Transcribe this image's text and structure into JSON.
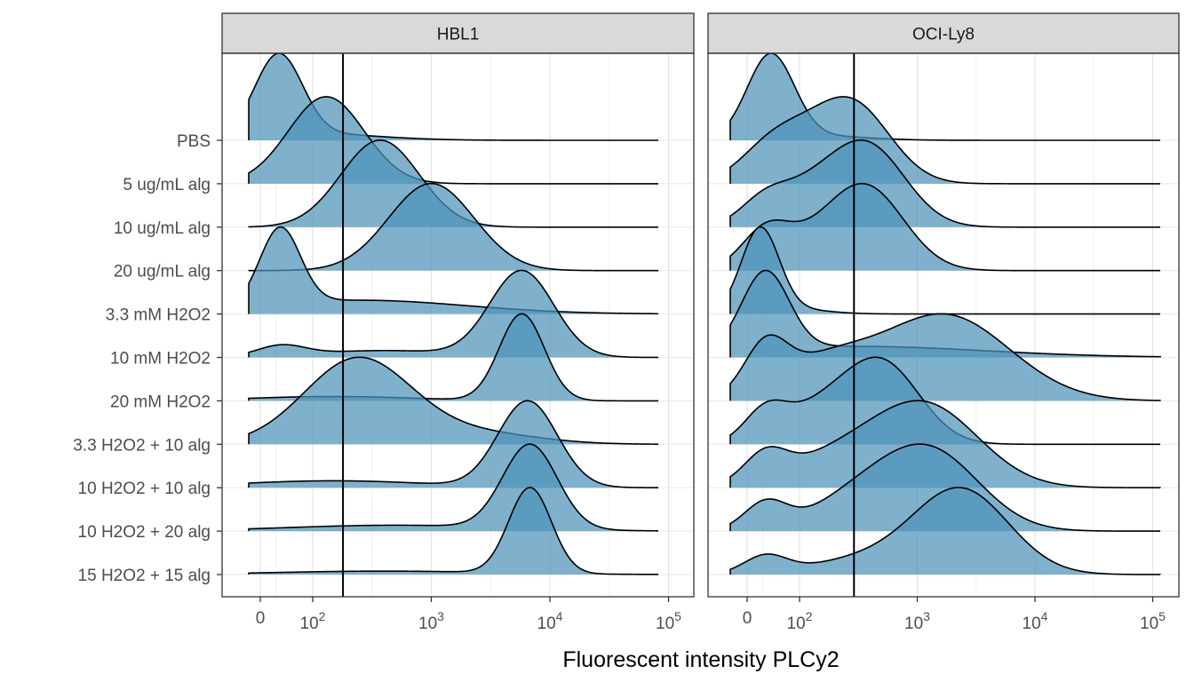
{
  "chart_data": {
    "type": "ridgeline",
    "title": "",
    "xlabel": "Fluorescent intensity PLCy2",
    "ylabel": "",
    "x_scale": "biexponential",
    "x_ticks": [
      {
        "value": 0,
        "base": "0",
        "exp": ""
      },
      {
        "value": 100,
        "base": "10",
        "exp": "2"
      },
      {
        "value": 1000,
        "base": "10",
        "exp": "3"
      },
      {
        "value": 10000,
        "base": "10",
        "exp": "4"
      },
      {
        "value": 100000,
        "base": "10",
        "exp": "5"
      }
    ],
    "x_minor_values": [
      30,
      316,
      3162,
      31623
    ],
    "categories": [
      "PBS",
      "5 ug/mL alg",
      "10 ug/mL alg",
      "20 ug/mL alg",
      "3.3 mM H2O2",
      "10 mM H2O2",
      "20 mM H2O2",
      "3.3 H2O2 + 10 alg",
      "10 H2O2 + 10 alg",
      "10 H2O2 + 20 alg",
      "15 H2O2 + 15 alg"
    ],
    "fill_color": "#4e93ba",
    "fill_opacity": 0.72,
    "panels": [
      {
        "name": "HBL1",
        "threshold": 180,
        "x_range": [
          -40,
          90000
        ],
        "series": [
          {
            "category": "PBS",
            "peaks": [
              [
                35,
                1.0,
                0.2
              ]
            ],
            "tail": [
              [
                100,
                0.08,
                0.55
              ]
            ]
          },
          {
            "category": "5 ug/mL alg",
            "peaks": [
              [
                130,
                1.0,
                0.32
              ]
            ],
            "tail": []
          },
          {
            "category": "10 ug/mL alg",
            "peaks": [
              [
                370,
                1.0,
                0.33
              ]
            ],
            "tail": []
          },
          {
            "category": "20 ug/mL alg",
            "peaks": [
              [
                1000,
                1.0,
                0.36
              ]
            ],
            "tail": []
          },
          {
            "category": "3.3 mM H2O2",
            "peaks": [
              [
                38,
                1.0,
                0.17
              ]
            ],
            "tail": [
              [
                250,
                0.18,
                0.9
              ]
            ]
          },
          {
            "category": "10 mM H2O2",
            "peaks": [
              [
                5800,
                1.0,
                0.27
              ],
              [
                40,
                0.12,
                0.2
              ]
            ],
            "tail": [
              [
                400,
                0.08,
                0.6
              ]
            ]
          },
          {
            "category": "20 mM H2O2",
            "peaks": [
              [
                5800,
                1.0,
                0.19
              ]
            ],
            "tail": [
              [
                150,
                0.05,
                0.7
              ]
            ]
          },
          {
            "category": "3.3 H2O2 + 10 alg",
            "peaks": [
              [
                240,
                0.55,
                0.45
              ]
            ],
            "tail": [
              [
                2500,
                0.07,
                0.5
              ]
            ]
          },
          {
            "category": "10 H2O2 + 10 alg",
            "peaks": [
              [
                6500,
                1.0,
                0.25
              ]
            ],
            "tail": [
              [
                150,
                0.08,
                0.8
              ]
            ]
          },
          {
            "category": "10 H2O2 + 20 alg",
            "peaks": [
              [
                6800,
                1.0,
                0.23
              ]
            ],
            "tail": [
              [
                500,
                0.07,
                0.9
              ]
            ]
          },
          {
            "category": "15 H2O2 + 15 alg",
            "peaks": [
              [
                6800,
                1.0,
                0.18
              ]
            ],
            "tail": [
              [
                400,
                0.04,
                0.9
              ]
            ]
          }
        ]
      },
      {
        "name": "OCI-Ly8",
        "threshold": 290,
        "x_range": [
          -40,
          120000
        ],
        "series": [
          {
            "category": "PBS",
            "peaks": [
              [
                45,
                1.0,
                0.2
              ]
            ],
            "tail": [
              [
                150,
                0.05,
                0.4
              ]
            ]
          },
          {
            "category": "5 ug/mL alg",
            "peaks": [
              [
                280,
                0.72,
                0.32
              ],
              [
                35,
                0.15,
                0.25
              ]
            ],
            "tail": [
              [
                80,
                0.3,
                0.3
              ]
            ]
          },
          {
            "category": "10 ug/mL alg",
            "peaks": [
              [
                380,
                0.72,
                0.32
              ],
              [
                30,
                0.18,
                0.2
              ]
            ],
            "tail": [
              [
                110,
                0.28,
                0.3
              ]
            ]
          },
          {
            "category": "20 ug/mL alg",
            "peaks": [
              [
                380,
                0.72,
                0.32
              ],
              [
                35,
                0.3,
                0.2
              ]
            ],
            "tail": [
              [
                120,
                0.22,
                0.35
              ]
            ]
          },
          {
            "category": "3.3 mM H2O2",
            "peaks": [
              [
                25,
                1.0,
                0.16
              ]
            ],
            "tail": [
              [
                80,
                0.06,
                0.3
              ]
            ]
          },
          {
            "category": "10 mM H2O2",
            "peaks": [
              [
                35,
                0.85,
                0.2
              ]
            ],
            "tail": [
              [
                300,
                0.12,
                1.1
              ]
            ]
          },
          {
            "category": "20 mM H2O2",
            "peaks": [
              [
                1700,
                0.42,
                0.55
              ],
              [
                35,
                0.22,
                0.18
              ]
            ],
            "tail": [
              [
                150,
                0.17,
                0.4
              ]
            ]
          },
          {
            "category": "3.3 H2O2 + 10 alg",
            "peaks": [
              [
                500,
                0.58,
                0.32
              ],
              [
                35,
                0.22,
                0.18
              ]
            ],
            "tail": [
              [
                140,
                0.22,
                0.3
              ]
            ]
          },
          {
            "category": "10 H2O2 + 10 alg",
            "peaks": [
              [
                1200,
                0.5,
                0.45
              ],
              [
                35,
                0.17,
                0.18
              ]
            ],
            "tail": [
              [
                200,
                0.18,
                0.45
              ]
            ]
          },
          {
            "category": "10 H2O2 + 20 alg",
            "peaks": [
              [
                1300,
                0.52,
                0.42
              ],
              [
                35,
                0.18,
                0.18
              ]
            ],
            "tail": [
              [
                300,
                0.2,
                0.4
              ]
            ]
          },
          {
            "category": "15 H2O2 + 15 alg",
            "peaks": [
              [
                2400,
                0.72,
                0.4
              ],
              [
                35,
                0.15,
                0.18
              ]
            ],
            "tail": [
              [
                400,
                0.14,
                0.5
              ]
            ]
          }
        ]
      }
    ]
  }
}
